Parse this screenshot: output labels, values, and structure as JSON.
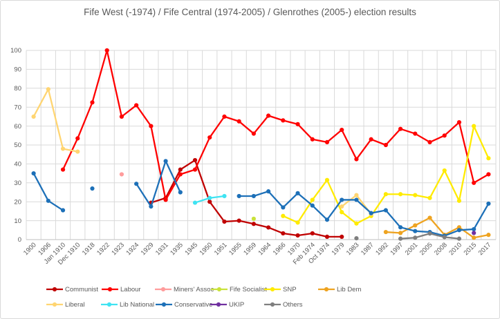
{
  "chart_data": {
    "type": "line",
    "title": "Fife West (-1974) / Fife Central (1974-2005) / Glenrothes (2005-) election results",
    "xlabel": "",
    "ylabel": "",
    "ylim": [
      0,
      100
    ],
    "y_ticks": [
      0,
      10,
      20,
      30,
      40,
      50,
      60,
      70,
      80,
      90,
      100
    ],
    "grid": true,
    "legend_position": "bottom",
    "text_color": "#595959",
    "grid_color": "#d9d9d9",
    "categories": [
      "1900",
      "1906",
      "Jan 1910",
      "Dec 1910",
      "1918",
      "1922",
      "1923",
      "1924",
      "1929",
      "1931",
      "1935",
      "1945",
      "1950",
      "1951",
      "1955",
      "1959",
      "1964",
      "1966",
      "1970",
      "Feb 1974",
      "Oct 1974",
      "1979",
      "1983",
      "1987",
      "1992",
      "1997",
      "2001",
      "2005",
      "2008",
      "2010",
      "2015",
      "2017"
    ],
    "series": [
      {
        "name": "Communist",
        "color": "#C00000",
        "values": [
          null,
          null,
          null,
          null,
          null,
          null,
          null,
          null,
          19.5,
          22,
          37,
          42,
          20,
          9.5,
          10,
          8.3,
          6.4,
          3.3,
          2.2,
          3.3,
          1.5,
          1.5,
          null,
          null,
          null,
          null,
          null,
          null,
          null,
          null,
          null,
          null
        ]
      },
      {
        "name": "Labour",
        "color": "#FF0000",
        "values": [
          null,
          null,
          37,
          53.5,
          72.5,
          100,
          65,
          71,
          60,
          21,
          34.5,
          37,
          54,
          65,
          62.5,
          56,
          65.5,
          63,
          61,
          53,
          51.5,
          58,
          42.5,
          53,
          50,
          58.5,
          56,
          51.5,
          55,
          62,
          30,
          34.5
        ]
      },
      {
        "name": "Miners' Assoc",
        "color": "#FF9C9C",
        "values": [
          null,
          null,
          null,
          null,
          null,
          null,
          34.5,
          null,
          null,
          null,
          null,
          null,
          null,
          null,
          null,
          null,
          null,
          null,
          null,
          null,
          null,
          null,
          null,
          null,
          null,
          null,
          null,
          null,
          null,
          null,
          null,
          null
        ]
      },
      {
        "name": "Fife Socialist",
        "color": "#C9E23A",
        "values": [
          null,
          null,
          null,
          null,
          null,
          null,
          null,
          null,
          null,
          null,
          null,
          null,
          null,
          null,
          null,
          11,
          null,
          null,
          null,
          null,
          null,
          null,
          null,
          null,
          null,
          null,
          null,
          null,
          null,
          null,
          null,
          null
        ]
      },
      {
        "name": "SNP",
        "color": "#FFEB00",
        "values": [
          null,
          null,
          null,
          null,
          null,
          null,
          null,
          null,
          null,
          null,
          null,
          null,
          null,
          null,
          null,
          null,
          null,
          12.5,
          9,
          21,
          31.5,
          14.5,
          8.5,
          12.5,
          24,
          24,
          23.5,
          22,
          36.5,
          20.5,
          60,
          43
        ]
      },
      {
        "name": "Lib Dem",
        "color": "#EEA320",
        "values": [
          null,
          null,
          null,
          null,
          null,
          null,
          null,
          null,
          null,
          null,
          null,
          null,
          null,
          null,
          null,
          null,
          null,
          null,
          null,
          null,
          null,
          null,
          null,
          null,
          4,
          3.5,
          7.5,
          11.5,
          2.5,
          6.5,
          1,
          2.5
        ]
      },
      {
        "name": "Liberal",
        "color": "#FFD572",
        "values": [
          65,
          79.5,
          48,
          46.5,
          null,
          null,
          null,
          null,
          null,
          null,
          null,
          null,
          null,
          null,
          null,
          null,
          null,
          null,
          null,
          null,
          null,
          17.5,
          23.5,
          13.5,
          null,
          null,
          null,
          null,
          null,
          null,
          null,
          null
        ]
      },
      {
        "name": "Lib National",
        "color": "#3FE3F2",
        "values": [
          null,
          null,
          null,
          null,
          null,
          null,
          null,
          null,
          null,
          null,
          null,
          19.5,
          22,
          23,
          null,
          null,
          null,
          null,
          null,
          null,
          null,
          null,
          null,
          null,
          null,
          null,
          null,
          null,
          null,
          null,
          null,
          null
        ]
      },
      {
        "name": "Conservative",
        "color": "#1D70B8",
        "values": [
          35,
          20.5,
          15.5,
          null,
          27,
          null,
          null,
          29.5,
          17.5,
          41.5,
          25,
          null,
          null,
          null,
          23,
          23,
          25.5,
          17,
          24.5,
          18,
          10.5,
          21,
          21,
          14,
          15.5,
          6.5,
          4.5,
          4,
          2,
          5,
          5.5,
          19
        ]
      },
      {
        "name": "UKIP",
        "color": "#7030A0",
        "values": [
          null,
          null,
          null,
          null,
          null,
          null,
          null,
          null,
          null,
          null,
          null,
          null,
          null,
          null,
          null,
          null,
          null,
          null,
          null,
          null,
          null,
          null,
          null,
          null,
          null,
          null,
          null,
          null,
          null,
          null,
          3.5,
          null
        ]
      },
      {
        "name": "Others",
        "color": "#7F7F7F",
        "values": [
          null,
          null,
          null,
          null,
          null,
          null,
          null,
          null,
          null,
          null,
          null,
          null,
          null,
          null,
          null,
          null,
          null,
          null,
          null,
          null,
          null,
          null,
          0.7,
          null,
          null,
          0.5,
          1,
          3.2,
          1.3,
          0.5,
          null,
          null
        ]
      }
    ],
    "legend_rows": [
      {
        "top": 412,
        "items": [
          {
            "series": 0,
            "left": 65
          },
          {
            "series": 1,
            "left": 145
          },
          {
            "series": 2,
            "left": 222
          },
          {
            "series": 3,
            "left": 303
          },
          {
            "series": 4,
            "left": 380
          },
          {
            "series": 5,
            "left": 458
          }
        ]
      },
      {
        "top": 434,
        "items": [
          {
            "series": 6,
            "left": 65
          },
          {
            "series": 7,
            "left": 144
          },
          {
            "series": 8,
            "left": 223
          },
          {
            "series": 9,
            "left": 302
          },
          {
            "series": 10,
            "left": 380
          }
        ]
      }
    ]
  }
}
